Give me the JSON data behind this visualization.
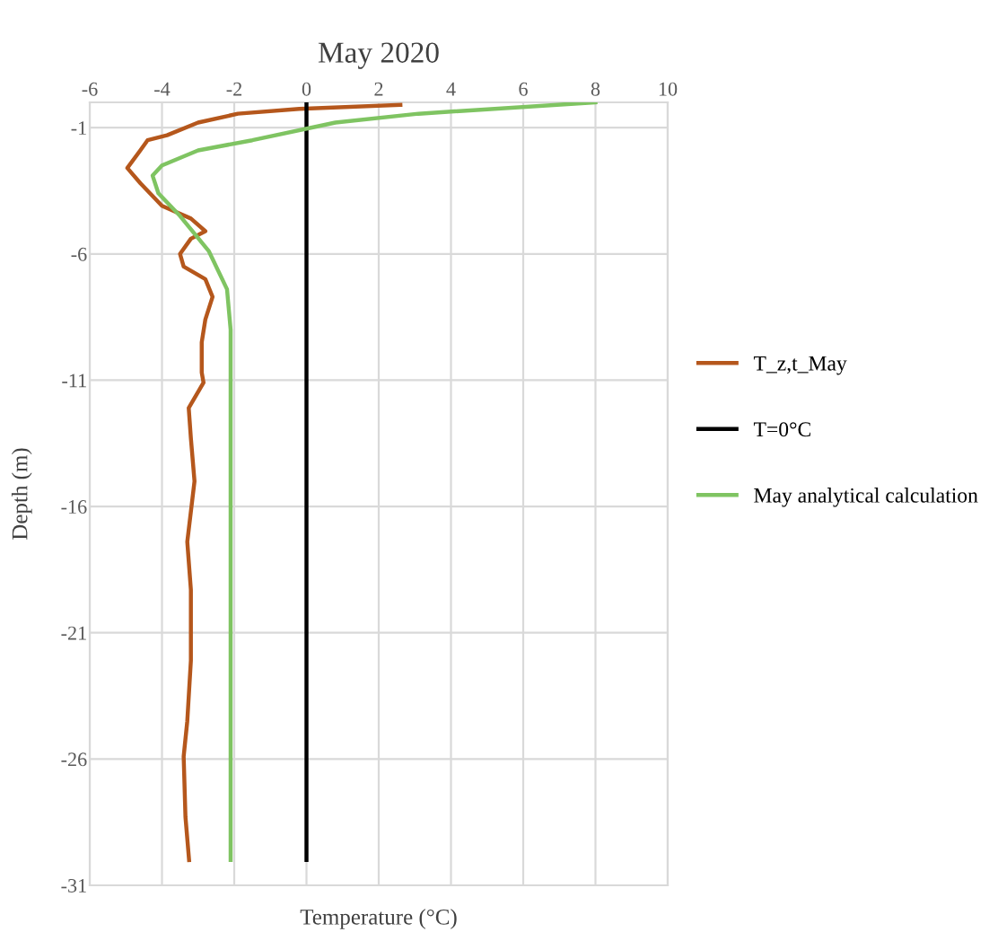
{
  "chart_data": {
    "type": "line",
    "title": "May 2020",
    "xlabel": "Temperature (°C)",
    "ylabel": "Depth (m)",
    "xlim": [
      -6,
      10
    ],
    "xticks": [
      -6,
      -4,
      -2,
      0,
      2,
      4,
      6,
      8,
      10
    ],
    "ylim": [
      -31,
      0
    ],
    "yticks": [
      -31,
      -26,
      -21,
      -16,
      -11,
      -6,
      -1
    ],
    "grid": true,
    "legend": "right",
    "marker": "none",
    "line_style": "solid",
    "series": [
      {
        "name": "T_z,t_May",
        "color": "#b5571c",
        "x": [
          2.6,
          -0.2,
          -1.9,
          -3.0,
          -3.86,
          -4.4,
          -4.6,
          -4.96,
          -4.6,
          -4.0,
          -3.2,
          -2.8,
          -3.2,
          -3.5,
          -3.4,
          -2.8,
          -2.6,
          -2.8,
          -2.9,
          -2.9,
          -2.85,
          -3.26,
          -3.2,
          -3.1,
          -3.3,
          -3.2,
          -3.2,
          -3.3,
          -3.4,
          -3.35,
          -3.25
        ],
        "values": [
          -0.1,
          -0.26,
          -0.45,
          -0.8,
          -1.3,
          -1.5,
          -1.9,
          -2.6,
          -3.2,
          -4.1,
          -4.6,
          -5.1,
          -5.4,
          -6.0,
          -6.5,
          -7.0,
          -7.7,
          -8.6,
          -9.5,
          -10.7,
          -11.1,
          -12.1,
          -13.3,
          -15.0,
          -17.4,
          -19.3,
          -22.1,
          -24.5,
          -25.9,
          -28.3,
          -30.0
        ]
      },
      {
        "name": "T=0°C",
        "color": "#000000",
        "x": [
          0,
          0
        ],
        "values": [
          0,
          -30
        ]
      },
      {
        "name": "May analytical calculation",
        "color": "#7fc462",
        "x": [
          8.0,
          3.1,
          0.8,
          -1.5,
          -3.0,
          -4.0,
          -4.26,
          -4.1,
          -3.5,
          -2.7,
          -2.2,
          -2.1,
          -2.1
        ],
        "values": [
          0,
          -0.45,
          -0.8,
          -1.5,
          -1.9,
          -2.5,
          -2.9,
          -3.6,
          -4.5,
          -5.9,
          -7.4,
          -9.0,
          -30.0
        ]
      }
    ]
  }
}
